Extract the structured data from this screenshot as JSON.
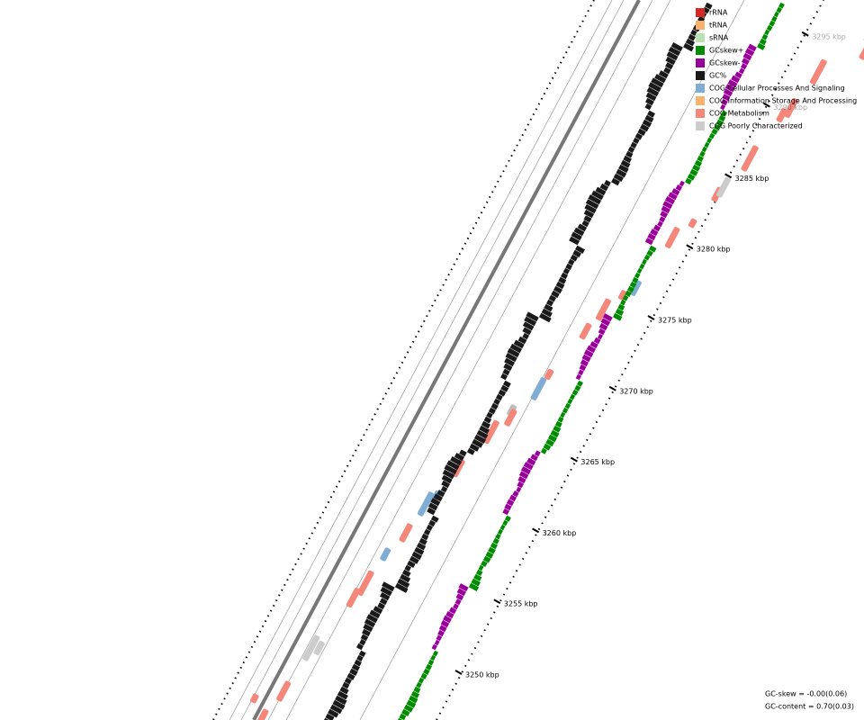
{
  "legend": [
    {
      "label": "rRNA",
      "color": "#d62728"
    },
    {
      "label": "tRNA",
      "color": "#f7b36b"
    },
    {
      "label": "sRNA",
      "color": "#b9e3b0"
    },
    {
      "label": "GCskew+",
      "color": "#008b00"
    },
    {
      "label": "GCskew-",
      "color": "#990099"
    },
    {
      "label": "GC%",
      "color": "#1a1a1a"
    },
    {
      "label": "COG Cellular Processes And Signaling",
      "color": "#7fadd3"
    },
    {
      "label": "COG Information Storage And Processing",
      "color": "#f7b36b"
    },
    {
      "label": "COG Metabolism",
      "color": "#f4867a"
    },
    {
      "label": "COG Poorly Characterized",
      "color": "#cccccc"
    }
  ],
  "ticks": [
    "3250 kbp",
    "3255 kbp",
    "3260 kbp",
    "3265 kbp",
    "3270 kbp",
    "3275 kbp",
    "3280 kbp",
    "3285 kbp",
    "3290 kbp",
    "3295 kbp"
  ],
  "stats": [
    "GC-skew = -0.00(0.06)",
    "GC-content = 0.70(0.03)"
  ]
}
